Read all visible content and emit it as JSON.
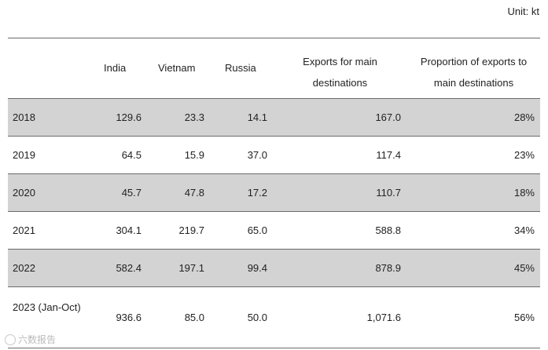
{
  "unit_label": "Unit: kt",
  "chart_data": {
    "type": "table",
    "columns": [
      "",
      "India",
      "Vietnam",
      "Russia",
      "Exports for main destinations",
      "Proportion of exports to main destinations"
    ],
    "rows": [
      {
        "year": "2018",
        "india": "129.6",
        "vietnam": "23.3",
        "russia": "14.1",
        "exports": "167.0",
        "proportion": "28%"
      },
      {
        "year": "2019",
        "india": "64.5",
        "vietnam": "15.9",
        "russia": "37.0",
        "exports": "117.4",
        "proportion": "23%"
      },
      {
        "year": "2020",
        "india": "45.7",
        "vietnam": "47.8",
        "russia": "17.2",
        "exports": "110.7",
        "proportion": "18%"
      },
      {
        "year": "2021",
        "india": "304.1",
        "vietnam": "219.7",
        "russia": "65.0",
        "exports": "588.8",
        "proportion": "34%"
      },
      {
        "year": "2022",
        "india": "582.4",
        "vietnam": "197.1",
        "russia": "99.4",
        "exports": "878.9",
        "proportion": "45%"
      },
      {
        "year": "2023 (Jan-Oct)",
        "india": "936.6",
        "vietnam": "85.0",
        "russia": "50.0",
        "exports": "1,071.6",
        "proportion": "56%"
      }
    ],
    "shading_color": "#d3d3d3"
  },
  "watermark": "六数报告"
}
